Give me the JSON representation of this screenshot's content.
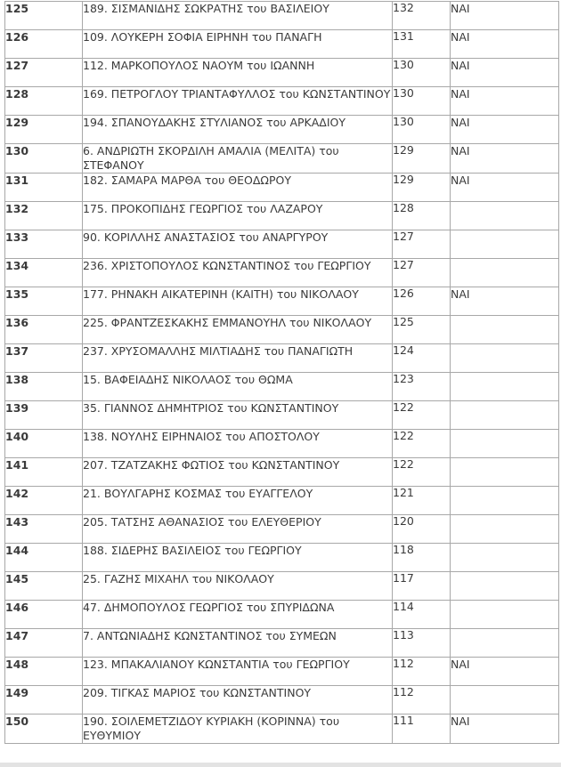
{
  "rows": [
    {
      "rank": "125",
      "name": "189. ΣΙΣΜΑΝΙΔΗΣ ΣΩΚΡΑΤΗΣ του ΒΑΣΙΛΕΙΟΥ",
      "votes": "132",
      "elected": "ΝΑΙ"
    },
    {
      "rank": "126",
      "name": "109. ΛΟΥΚΕΡΗ ΣΟΦΙΑ ΕΙΡΗΝΗ του ΠΑΝΑΓΗ",
      "votes": "131",
      "elected": "ΝΑΙ"
    },
    {
      "rank": "127",
      "name": "112. ΜΑΡΚΟΠΟΥΛΟΣ ΝΑΟΥΜ του ΙΩΑΝΝΗ",
      "votes": "130",
      "elected": "ΝΑΙ"
    },
    {
      "rank": "128",
      "name": "169. ΠΕΤΡΟΓΛΟΥ ΤΡΙΑΝΤΑΦΥΛΛΟΣ του ΚΩΝΣΤΑΝΤΙΝΟΥ",
      "votes": "130",
      "elected": "ΝΑΙ"
    },
    {
      "rank": "129",
      "name": "194. ΣΠΑΝΟΥΔΑΚΗΣ ΣΤΥΛΙΑΝΟΣ του ΑΡΚΑΔΙΟΥ",
      "votes": "130",
      "elected": "ΝΑΙ"
    },
    {
      "rank": "130",
      "name": "6. ΑΝΔΡΙΩΤΗ ΣΚΟΡΔΙΛΗ ΑΜΑΛΙΑ (ΜΕΛΙΤΑ) του ΣΤΕΦΑΝΟΥ",
      "votes": "129",
      "elected": "ΝΑΙ"
    },
    {
      "rank": "131",
      "name": "182. ΣΑΜΑΡΑ ΜΑΡΘΑ του ΘΕΟΔΩΡΟΥ",
      "votes": "129",
      "elected": "ΝΑΙ"
    },
    {
      "rank": "132",
      "name": "175. ΠΡΟΚΟΠΙΔΗΣ ΓΕΩΡΓΙΟΣ του ΛΑΖΑΡΟΥ",
      "votes": "128",
      "elected": ""
    },
    {
      "rank": "133",
      "name": "90. ΚΟΡΙΛΛΗΣ ΑΝΑΣΤΑΣΙΟΣ του ΑΝΑΡΓΥΡΟΥ",
      "votes": "127",
      "elected": ""
    },
    {
      "rank": "134",
      "name": "236. ΧΡΙΣΤΟΠΟΥΛΟΣ ΚΩΝΣΤΑΝΤΙΝΟΣ του ΓΕΩΡΓΙΟΥ",
      "votes": "127",
      "elected": ""
    },
    {
      "rank": "135",
      "name": "177. ΡΗΝΑΚΗ ΑΙΚΑΤΕΡΙΝΗ (ΚΑΙΤΗ) του ΝΙΚΟΛΑΟΥ",
      "votes": "126",
      "elected": "ΝΑΙ"
    },
    {
      "rank": "136",
      "name": "225. ΦΡΑΝΤΖΕΣΚΑΚΗΣ ΕΜΜΑΝΟΥΗΛ του ΝΙΚΟΛΑΟΥ",
      "votes": "125",
      "elected": ""
    },
    {
      "rank": "137",
      "name": "237. ΧΡΥΣΟΜΑΛΛΗΣ ΜΙΛΤΙΑΔΗΣ του ΠΑΝΑΓΙΩΤΗ",
      "votes": "124",
      "elected": ""
    },
    {
      "rank": "138",
      "name": "15. ΒΑΦΕΙΑΔΗΣ ΝΙΚΟΛΑΟΣ του ΘΩΜΑ",
      "votes": "123",
      "elected": ""
    },
    {
      "rank": "139",
      "name": "35. ΓΙΑΝΝΟΣ ΔΗΜΗΤΡΙΟΣ του ΚΩΝΣΤΑΝΤΙΝΟΥ",
      "votes": "122",
      "elected": ""
    },
    {
      "rank": "140",
      "name": "138. ΝΟΥΛΗΣ ΕΙΡΗΝΑΙΟΣ του ΑΠΟΣΤΟΛΟΥ",
      "votes": "122",
      "elected": ""
    },
    {
      "rank": "141",
      "name": "207. ΤΖΑΤΖΑΚΗΣ ΦΩΤΙΟΣ του ΚΩΝΣΤΑΝΤΙΝΟΥ",
      "votes": "122",
      "elected": ""
    },
    {
      "rank": "142",
      "name": "21. ΒΟΥΛΓΑΡΗΣ ΚΟΣΜΑΣ του ΕΥΑΓΓΕΛΟΥ",
      "votes": "121",
      "elected": ""
    },
    {
      "rank": "143",
      "name": "205. ΤΑΤΣΗΣ ΑΘΑΝΑΣΙΟΣ του ΕΛΕΥΘΕΡΙΟΥ",
      "votes": "120",
      "elected": ""
    },
    {
      "rank": "144",
      "name": "188. ΣΙΔΕΡΗΣ ΒΑΣΙΛΕΙΟΣ του ΓΕΩΡΓΙΟΥ",
      "votes": "118",
      "elected": ""
    },
    {
      "rank": "145",
      "name": "25. ΓΑΖΗΣ ΜΙΧΑΗΛ του ΝΙΚΟΛΑΟΥ",
      "votes": "117",
      "elected": ""
    },
    {
      "rank": "146",
      "name": "47. ΔΗΜΟΠΟΥΛΟΣ ΓΕΩΡΓΙΟΣ του ΣΠΥΡΙΔΩΝΑ",
      "votes": "114",
      "elected": ""
    },
    {
      "rank": "147",
      "name": "7. ΑΝΤΩΝΙΑΔΗΣ ΚΩΝΣΤΑΝΤΙΝΟΣ του ΣΥΜΕΩΝ",
      "votes": "113",
      "elected": ""
    },
    {
      "rank": "148",
      "name": "123. ΜΠΑΚΑΛΙΑΝΟΥ ΚΩΝΣΤΑΝΤΙΑ του ΓΕΩΡΓΙΟΥ",
      "votes": "112",
      "elected": "ΝΑΙ"
    },
    {
      "rank": "149",
      "name": "209. ΤΙΓΚΑΣ ΜΑΡΙΟΣ του ΚΩΝΣΤΑΝΤΙΝΟΥ",
      "votes": "112",
      "elected": ""
    },
    {
      "rank": "150",
      "name": "190. ΣΟΙΛΕΜΕΤΖΙΔΟΥ ΚΥΡΙΑΚΗ (ΚΟΡΙΝΝΑ) του ΕΥΘΥΜΙΟΥ",
      "votes": "111",
      "elected": "ΝΑΙ"
    }
  ]
}
